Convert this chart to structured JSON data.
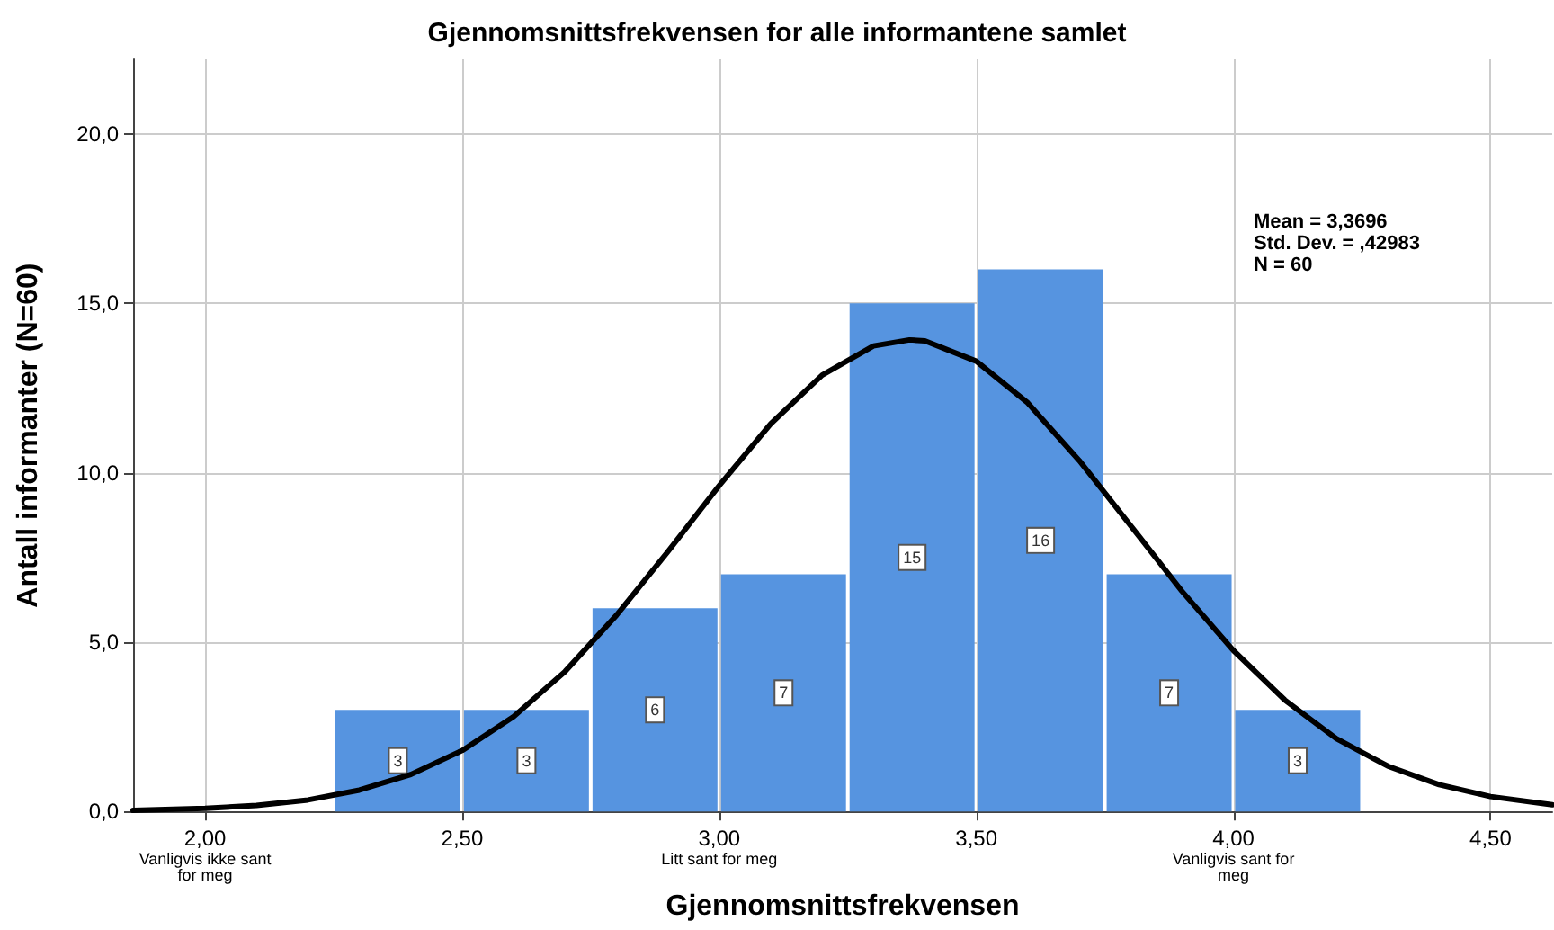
{
  "chart_data": {
    "type": "histogram",
    "title": "Gjennomsnittsfrekvensen for alle informantene samlet",
    "xlabel": "Gjennomsnittsfrekvensen",
    "ylabel": "Antall informanter (N=60)",
    "annotations": [
      "Mean = 3,3696",
      "Std. Dev. = ,42983",
      "N = 60"
    ],
    "series": [
      {
        "color": "#5694e0",
        "bins": [
          2.25,
          2.5,
          2.75,
          3.0,
          3.25,
          3.5,
          3.75,
          4.0,
          4.25
        ],
        "values": [
          3,
          3,
          6,
          7,
          15,
          16,
          7,
          3
        ],
        "value_labels": [
          "3",
          "3",
          "6",
          "7",
          "15",
          "16",
          "7",
          "3"
        ]
      },
      {
        "type": "line",
        "color": "#000000",
        "x": [
          1.86,
          2.0,
          2.1,
          2.2,
          2.3,
          2.4,
          2.5,
          2.6,
          2.7,
          2.8,
          2.9,
          3.0,
          3.1,
          3.2,
          3.3,
          3.37,
          3.4,
          3.5,
          3.6,
          3.7,
          3.8,
          3.9,
          4.0,
          4.1,
          4.2,
          4.3,
          4.4,
          4.5,
          4.62
        ],
        "values": [
          0.03,
          0.09,
          0.18,
          0.34,
          0.63,
          1.09,
          1.8,
          2.8,
          4.13,
          5.79,
          7.67,
          9.62,
          11.44,
          12.88,
          13.74,
          13.92,
          13.89,
          13.29,
          12.06,
          10.36,
          8.44,
          6.5,
          4.75,
          3.29,
          2.15,
          1.34,
          0.79,
          0.44,
          0.2
        ]
      }
    ],
    "marker": "none",
    "line_style": "solid",
    "grid": true,
    "xlim": [
      1.86,
      4.62
    ],
    "ylim": [
      0,
      22.2
    ],
    "xticks": [
      {
        "value": 2,
        "label": "2,00\nVanligvis ikke sant\nfor meg"
      },
      {
        "value": 2.5,
        "label": "2,50"
      },
      {
        "value": 3,
        "label": "3,00\nLitt sant for meg"
      },
      {
        "value": 3.5,
        "label": "3,50"
      },
      {
        "value": 4,
        "label": "4,00\nVanligvis sant for\nmeg"
      },
      {
        "value": 4.5,
        "label": "4,50"
      }
    ],
    "yticks": [
      {
        "value": 0,
        "label": "0,0"
      },
      {
        "value": 5,
        "label": "5,0"
      },
      {
        "value": 10,
        "label": "10,0"
      },
      {
        "value": 15,
        "label": "15,0"
      },
      {
        "value": 20,
        "label": "20,0"
      }
    ]
  }
}
